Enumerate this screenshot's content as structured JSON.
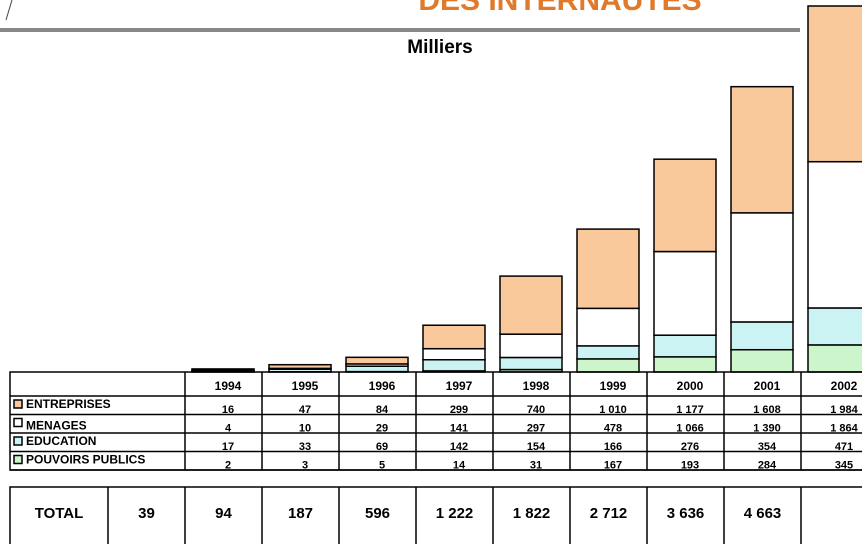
{
  "chart_data": {
    "type": "stacked_bar",
    "title": "DES INTERNAUTES",
    "subtitle": "Milliers",
    "categories": [
      "1994",
      "1995",
      "1996",
      "1997",
      "1998",
      "1999",
      "2000",
      "2001",
      "2002"
    ],
    "series": [
      {
        "name": "ENTREPRISES",
        "color": "#f9c89b",
        "values": [
          16,
          47,
          84,
          299,
          740,
          1010,
          1177,
          1608,
          1984
        ],
        "value_labels": [
          "16",
          "47",
          "84",
          "299",
          "740",
          "1 010",
          "1 177",
          "1 608",
          "1 984"
        ]
      },
      {
        "name": "MENAGES",
        "color": "#ffffff",
        "values": [
          4,
          10,
          29,
          141,
          297,
          478,
          1066,
          1390,
          1864
        ],
        "value_labels": [
          "4",
          "10",
          "29",
          "141",
          "297",
          "478",
          "1 066",
          "1 390",
          "1 864"
        ]
      },
      {
        "name": "EDUCATION",
        "color": "#ccf3f3",
        "values": [
          17,
          33,
          69,
          142,
          154,
          166,
          276,
          354,
          471
        ],
        "value_labels": [
          "17",
          "33",
          "69",
          "142",
          "154",
          "166",
          "276",
          "354",
          "471"
        ]
      },
      {
        "name": "POUVOIRS PUBLICS",
        "color": "#ccf5cc",
        "values": [
          2,
          3,
          5,
          14,
          31,
          167,
          193,
          284,
          345
        ],
        "value_labels": [
          "2",
          "3",
          "5",
          "14",
          "31",
          "167",
          "193",
          "284",
          "345"
        ]
      }
    ],
    "totals": {
      "name": "TOTAL",
      "values": [
        39,
        94,
        187,
        596,
        1222,
        1822,
        2712,
        3636,
        4663
      ],
      "value_labels": [
        "39",
        "94",
        "187",
        "596",
        "1 222",
        "1 822",
        "2 712",
        "3 636",
        "4 663"
      ]
    }
  }
}
